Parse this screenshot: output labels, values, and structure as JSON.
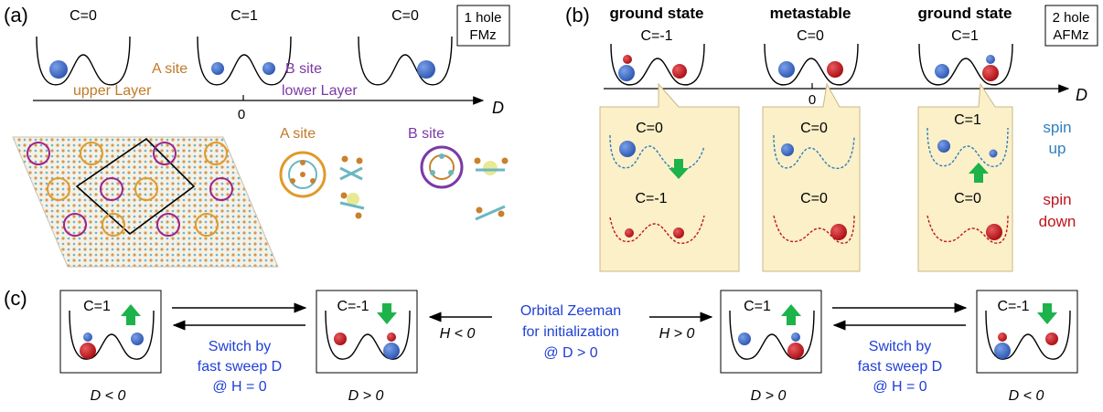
{
  "panel_a": {
    "label": "(a)",
    "wells": [
      "C=0",
      "C=1",
      "C=0"
    ],
    "box_line1": "1 hole",
    "box_line2": "FMz",
    "a_site_line1": "A site",
    "a_site_line2": "upper Layer",
    "b_site_line1": "B site",
    "b_site_line2": "lower Layer",
    "axis_label": "D",
    "axis_zero": "0",
    "inset_a": "A site",
    "inset_b": "B site"
  },
  "panel_b": {
    "label": "(b)",
    "states": [
      "ground state",
      "metastable",
      "ground state"
    ],
    "wells": [
      "C=-1",
      "C=0",
      "C=1"
    ],
    "box_line1": "2 hole",
    "box_line2": "AFMz",
    "axis_label": "D",
    "axis_zero": "0",
    "callouts": [
      {
        "up": "C=0",
        "down": "C=-1"
      },
      {
        "up": "C=0",
        "down": "C=0"
      },
      {
        "up": "C=1",
        "down": "C=0"
      }
    ],
    "spin_up_line1": "spin",
    "spin_up_line2": "up",
    "spin_down_line1": "spin",
    "spin_down_line2": "down"
  },
  "panel_c": {
    "label": "(c)",
    "boxes": [
      "C=1",
      "C=-1",
      "C=1",
      "C=-1"
    ],
    "captions": [
      "D < 0",
      "D > 0",
      "D > 0",
      "D < 0"
    ],
    "switch_line1": "Switch by",
    "switch_line2": "fast sweep D",
    "switch_line3": "@ H = 0",
    "center_line1": "Orbital Zeeman",
    "center_line2": "for initialization",
    "center_line3": "@ D > 0",
    "h_left": "H < 0",
    "h_right": "H > 0"
  },
  "colors": {
    "blue_ball": "#3b6bc4",
    "red_ball": "#c4141a",
    "arrow_green": "#1bb34a",
    "callout_fill": "#fbf0c8",
    "text_blue": "#1f3fd6"
  }
}
